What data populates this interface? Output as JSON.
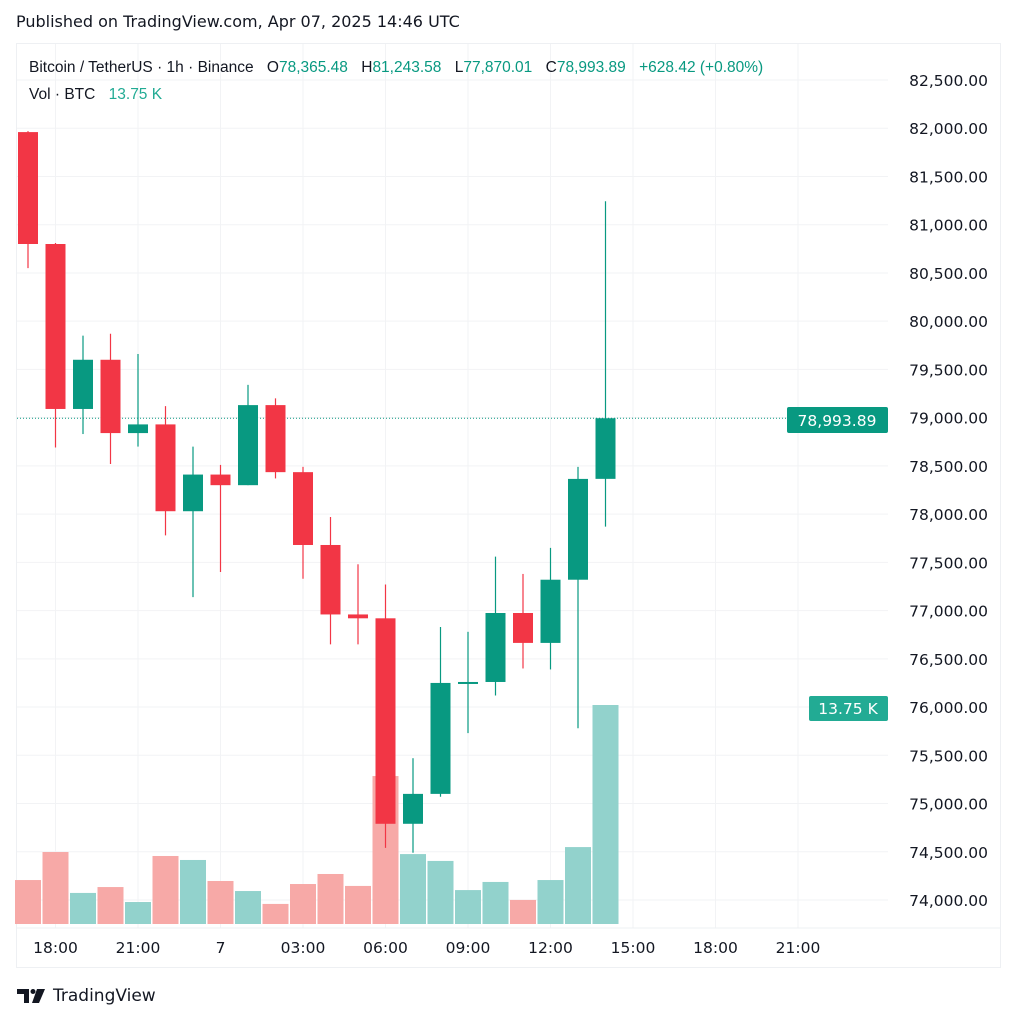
{
  "published": "Published on TradingView.com, Apr 07, 2025 14:46 UTC",
  "legend": {
    "symbol": "Bitcoin / TetherUS · 1h · Binance",
    "o_label": "O",
    "o_value": "78,365.48",
    "h_label": "H",
    "h_value": "81,243.58",
    "l_label": "L",
    "l_value": "77,870.01",
    "c_label": "C",
    "c_value": "78,993.89",
    "change": "+628.42 (+0.80%)",
    "vol_label": "Vol · BTC",
    "vol_value": "13.75 K"
  },
  "price_badge": "78,993.89",
  "volume_badge": "13.75 K",
  "logo_text": "TradingView",
  "colors": {
    "up": "#089981",
    "down": "#F23645",
    "vol_up": "#92D2CC",
    "vol_down": "#F7A9A7",
    "grid": "#F2F3F5"
  },
  "chart_data": {
    "type": "candlestick",
    "interval": "1h",
    "y_ticks": [
      "82,500.00",
      "82,000.00",
      "81,500.00",
      "81,000.00",
      "80,500.00",
      "80,000.00",
      "79,500.00",
      "79,000.00",
      "78,500.00",
      "78,000.00",
      "77,500.00",
      "77,000.00",
      "76,500.00",
      "76,000.00",
      "75,500.00",
      "75,000.00",
      "74,500.00",
      "74,000.00"
    ],
    "y_tick_values": [
      82500,
      82000,
      81500,
      81000,
      80500,
      80000,
      79500,
      79000,
      78500,
      78000,
      77500,
      77000,
      76500,
      76000,
      75500,
      75000,
      74500,
      74000
    ],
    "ylim": [
      74000,
      82500
    ],
    "x_ticks": [
      "18:00",
      "21:00",
      "7",
      "03:00",
      "06:00",
      "09:00",
      "12:00",
      "15:00",
      "18:00",
      "21:00"
    ],
    "x_tick_hours": [
      18,
      21,
      24,
      27,
      30,
      33,
      36,
      39,
      42,
      45
    ],
    "x_hours": [
      17,
      18,
      19,
      20,
      21,
      22,
      23,
      24,
      25,
      26,
      27,
      28,
      29,
      30,
      31,
      32,
      33,
      34,
      35,
      36,
      37,
      38
    ],
    "open": [
      81960,
      80800,
      79090,
      79600,
      78840,
      78930,
      78030,
      78410,
      78300,
      79130,
      78435,
      77680,
      76960,
      76920,
      74790,
      75100,
      76250,
      76260,
      76975,
      76665,
      77320,
      78365.48
    ],
    "high": [
      81970,
      80810,
      79850,
      79870,
      79660,
      79120,
      78700,
      78510,
      79340,
      79200,
      78490,
      77970,
      77480,
      77270,
      75470,
      76830,
      76780,
      77560,
      77380,
      77650,
      78490,
      81243.58
    ],
    "low": [
      80550,
      78690,
      78830,
      78520,
      78700,
      77780,
      77140,
      77400,
      78300,
      78370,
      77330,
      76650,
      76650,
      74540,
      74490,
      75070,
      75730,
      76120,
      76400,
      76390,
      75780,
      77870.01
    ],
    "close": [
      80800,
      79090,
      79600,
      78840,
      78930,
      78030,
      78410,
      78300,
      79130,
      78435,
      77680,
      76960,
      76920,
      74790,
      75100,
      76250,
      76260,
      76975,
      76665,
      77320,
      78365,
      78993.89
    ],
    "volume_k": [
      2.76,
      4.52,
      1.95,
      2.32,
      1.38,
      4.27,
      4.02,
      2.7,
      2.07,
      1.26,
      2.51,
      3.14,
      2.39,
      9.29,
      4.39,
      3.96,
      2.13,
      2.64,
      1.51,
      2.76,
      4.83,
      13.75
    ],
    "last_price": 78993.89,
    "grid": true
  }
}
